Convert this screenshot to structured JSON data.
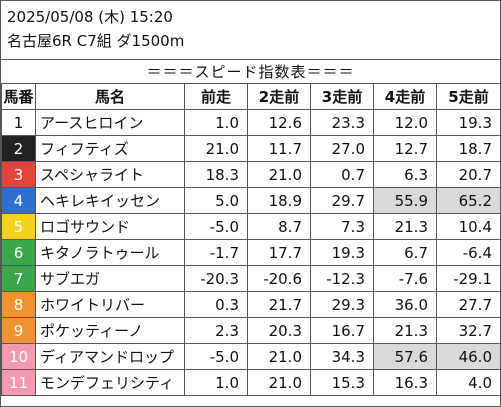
{
  "header": {
    "date_time": "2025/05/08 (木) 15:20",
    "race_info": "名古屋6R C7組 ダ1500m"
  },
  "table_title": "＝＝＝スピード指数表＝＝＝",
  "columns": [
    "馬番",
    "馬名",
    "前走",
    "2走前",
    "3走前",
    "4走前",
    "5走前"
  ],
  "rows": [
    {
      "no": "1",
      "name": "アースヒロイン",
      "v": [
        "1.0",
        "12.6",
        "23.3",
        "12.0",
        "19.3"
      ],
      "color": "#ffffff",
      "text": "#111111"
    },
    {
      "no": "2",
      "name": "フィフティズ",
      "v": [
        "21.0",
        "11.7",
        "27.0",
        "12.7",
        "18.7"
      ],
      "color": "#222222",
      "text": "#ffffff"
    },
    {
      "no": "3",
      "name": "スペシャライト",
      "v": [
        "18.3",
        "21.0",
        "0.7",
        "6.3",
        "20.7"
      ],
      "color": "#e8423a",
      "text": "#ffffff"
    },
    {
      "no": "4",
      "name": "ヘキレキイッセン",
      "v": [
        "5.0",
        "18.9",
        "29.7",
        "55.9",
        "65.2"
      ],
      "color": "#2e6fd1",
      "text": "#ffffff"
    },
    {
      "no": "5",
      "name": "ロゴサウンド",
      "v": [
        "-5.0",
        "8.7",
        "7.3",
        "21.3",
        "10.4"
      ],
      "color": "#f5d21e",
      "text": "#ffffff"
    },
    {
      "no": "6",
      "name": "キタノラトゥール",
      "v": [
        "-1.7",
        "17.7",
        "19.3",
        "6.7",
        "-6.4"
      ],
      "color": "#3aa84a",
      "text": "#ffffff"
    },
    {
      "no": "7",
      "name": "サブエガ",
      "v": [
        "-20.3",
        "-20.6",
        "-12.3",
        "-7.6",
        "-29.1"
      ],
      "color": "#3aa84a",
      "text": "#ffffff"
    },
    {
      "no": "8",
      "name": "ホワイトリバー",
      "v": [
        "0.3",
        "21.7",
        "29.3",
        "36.0",
        "27.7"
      ],
      "color": "#f0922e",
      "text": "#ffffff"
    },
    {
      "no": "9",
      "name": "ポケッティーノ",
      "v": [
        "2.3",
        "20.3",
        "16.7",
        "21.3",
        "32.7"
      ],
      "color": "#f0922e",
      "text": "#ffffff"
    },
    {
      "no": "10",
      "name": "ディアマンドロップ",
      "v": [
        "-5.0",
        "21.0",
        "34.3",
        "57.6",
        "46.0"
      ],
      "color": "#f39ab0",
      "text": "#ffffff"
    },
    {
      "no": "11",
      "name": "モンデフェリシティ",
      "v": [
        "1.0",
        "21.0",
        "15.3",
        "16.3",
        "4.0"
      ],
      "color": "#f39ab0",
      "text": "#ffffff"
    }
  ],
  "highlight_cells": [
    [
      3,
      3
    ],
    [
      3,
      4
    ],
    [
      9,
      3
    ],
    [
      9,
      4
    ]
  ],
  "highlight_color": "#d9d9d9"
}
